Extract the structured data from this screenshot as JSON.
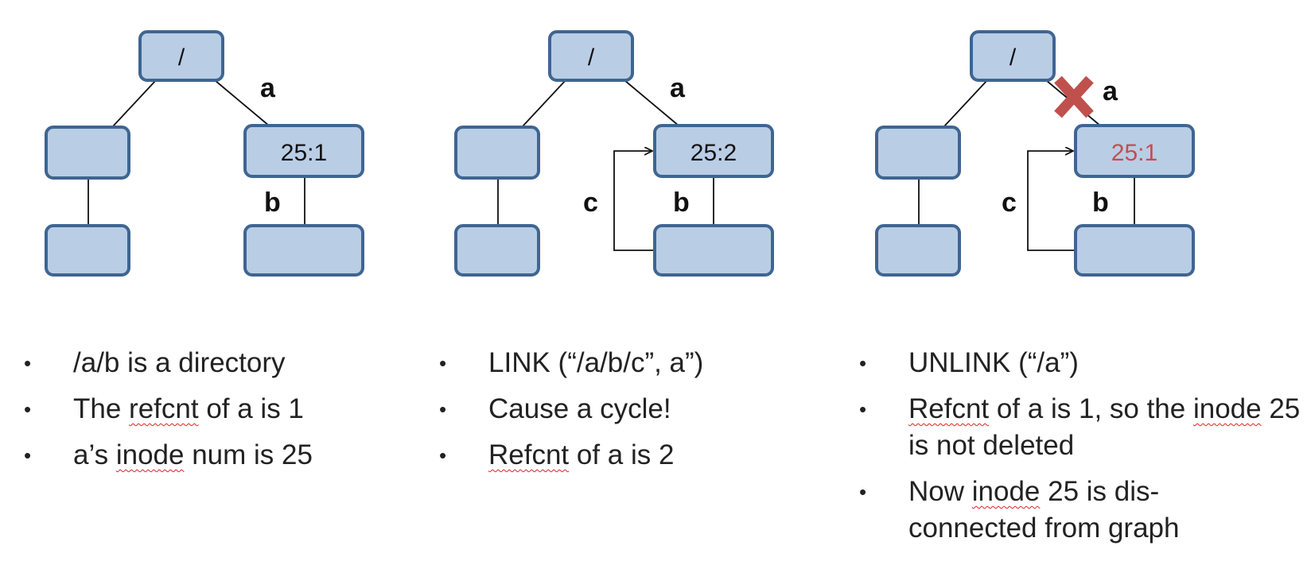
{
  "accent_colors": {
    "node_fill": "#b9cde5",
    "node_border": "#3f6592",
    "red": "#c0504d"
  },
  "panels": [
    {
      "root_label": "/",
      "edge_a": "a",
      "edge_b": "b",
      "inode_label": "25:1",
      "bullets": [
        [
          "/a/b is a directory"
        ],
        [
          "The ",
          "refcnt",
          " of a is 1"
        ],
        [
          "a’s ",
          "inode",
          " num is 25"
        ]
      ]
    },
    {
      "root_label": "/",
      "edge_a": "a",
      "edge_b": "b",
      "edge_c": "c",
      "inode_label": "25:2",
      "bullets": [
        [
          "LINK (“/a/b/c”, a”)"
        ],
        [
          "Cause a cycle!"
        ],
        [
          "",
          "Refcnt",
          " of a is 2"
        ]
      ]
    },
    {
      "root_label": "/",
      "edge_a": "a",
      "edge_b": "b",
      "edge_c": "c",
      "inode_label": "25:1",
      "unlink_mark": "cross-icon",
      "bullets": [
        [
          "UNLINK (“/a”)"
        ],
        [
          "",
          "Refcnt",
          " of a is 1, so the ",
          "inode",
          " 25 is not deleted"
        ],
        [
          "Now ",
          "inode",
          " 25 is dis-connected from graph"
        ]
      ]
    }
  ]
}
